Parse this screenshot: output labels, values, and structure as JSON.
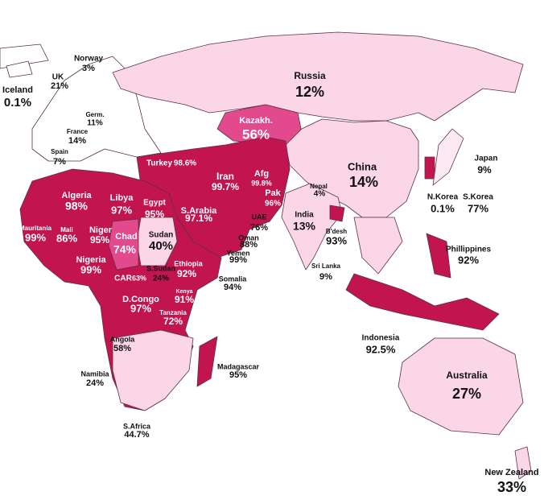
{
  "regions": [
    {
      "name": "Iceland",
      "value": "0.1%"
    },
    {
      "name": "UK",
      "value": "21%"
    },
    {
      "name": "Norway",
      "value": "3%"
    },
    {
      "name": "Germ.",
      "value": "11%"
    },
    {
      "name": "France",
      "value": "14%"
    },
    {
      "name": "Spain",
      "value": "7%"
    },
    {
      "name": "Russia",
      "value": "12%"
    },
    {
      "name": "Kazakh.",
      "value": "56%"
    },
    {
      "name": "Turkey",
      "value": "98.6%"
    },
    {
      "name": "Algeria",
      "value": "98%"
    },
    {
      "name": "Libya",
      "value": "97%"
    },
    {
      "name": "Egypt",
      "value": "95%"
    },
    {
      "name": "Iran",
      "value": "99.7%"
    },
    {
      "name": "Afg",
      "value": "99.8%"
    },
    {
      "name": "Pak",
      "value": "96%"
    },
    {
      "name": "S.Arabia",
      "value": "97.1%"
    },
    {
      "name": "China",
      "value": "14%"
    },
    {
      "name": "Nepal",
      "value": "4%"
    },
    {
      "name": "India",
      "value": "13%"
    },
    {
      "name": "B'desh",
      "value": "93%"
    },
    {
      "name": "Japan",
      "value": "9%"
    },
    {
      "name": "N.Korea",
      "value": "0.1%"
    },
    {
      "name": "S.Korea",
      "value": "77%"
    },
    {
      "name": "UAE",
      "value": "76%"
    },
    {
      "name": "Oman",
      "value": "88%"
    },
    {
      "name": "Yemen",
      "value": "99%"
    },
    {
      "name": "Mauritania",
      "value": "99%"
    },
    {
      "name": "Mali",
      "value": "86%"
    },
    {
      "name": "Niger",
      "value": "95%"
    },
    {
      "name": "Chad",
      "value": "74%"
    },
    {
      "name": "Sudan",
      "value": "40%"
    },
    {
      "name": "Nigeria",
      "value": "99%"
    },
    {
      "name": "Ethiopia",
      "value": "92%"
    },
    {
      "name": "S.Sudan",
      "value": "24%"
    },
    {
      "name": "CAR",
      "value": "63%"
    },
    {
      "name": "Somalia",
      "value": "94%"
    },
    {
      "name": "Kenya",
      "value": "91%"
    },
    {
      "name": "D.Congo",
      "value": "97%"
    },
    {
      "name": "Tanzania",
      "value": "72%"
    },
    {
      "name": "Sri Lanka",
      "value": "9%"
    },
    {
      "name": "Phillippines",
      "value": "92%"
    },
    {
      "name": "Indonesia",
      "value": "92.5%"
    },
    {
      "name": "Angola",
      "value": "58%"
    },
    {
      "name": "Madagascar",
      "value": "95%"
    },
    {
      "name": "Namibia",
      "value": "24%"
    },
    {
      "name": "Australia",
      "value": "27%"
    },
    {
      "name": "S.Africa",
      "value": "44.7%"
    },
    {
      "name": "New Zealand",
      "value": "33%"
    }
  ]
}
